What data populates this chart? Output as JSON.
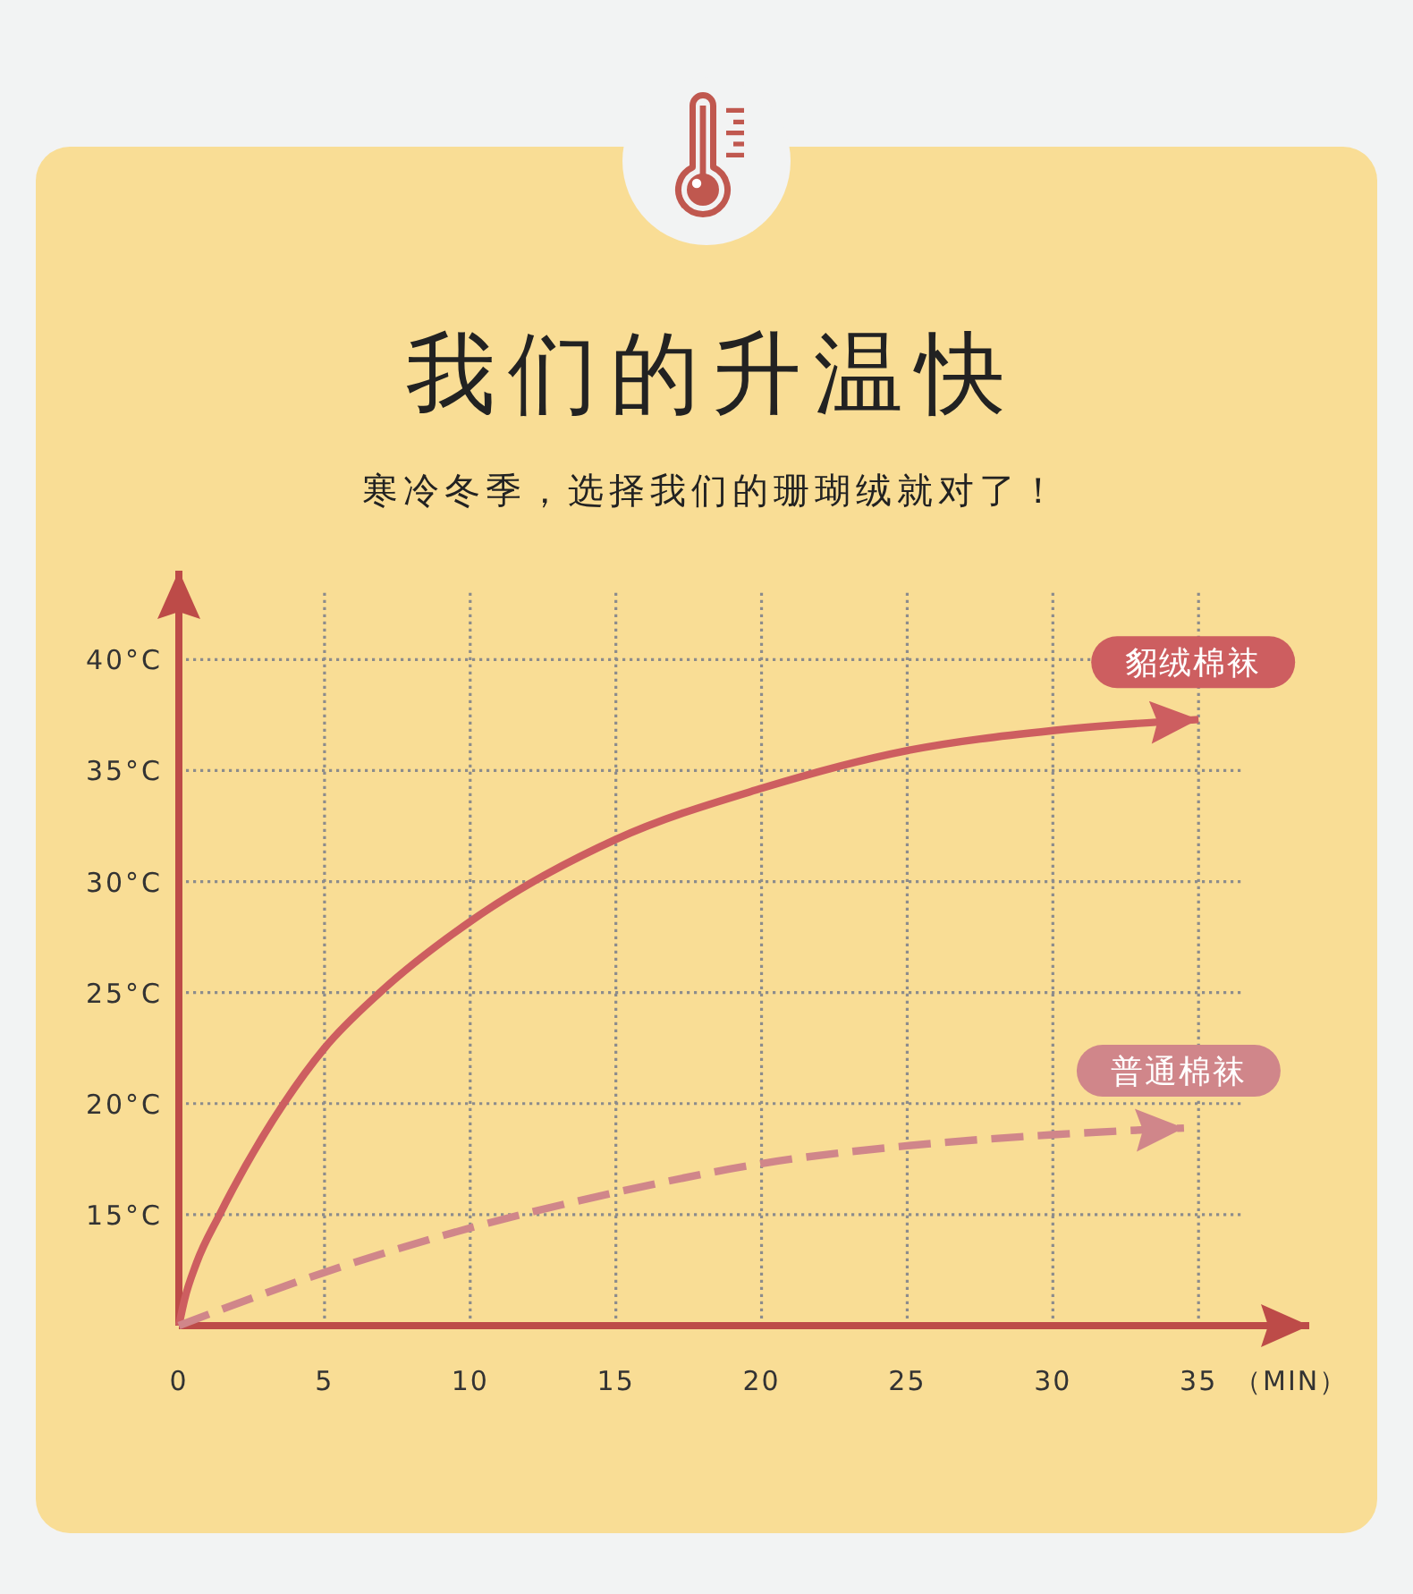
{
  "chart_data": {
    "type": "line",
    "title": "我们的升温快",
    "subtitle": "寒冷冬季，选择我们的珊瑚绒就对了！",
    "xlabel": "（MIN）",
    "series": [
      {
        "name": "貂绒棉袜",
        "color": "#cd5e60",
        "line_style": "solid",
        "x": [
          0,
          0.2,
          0.6,
          1.4,
          3.6,
          5,
          6.9,
          10,
          15,
          20,
          25,
          30,
          35
        ],
        "values": [
          10,
          11.2,
          12.8,
          15,
          20,
          22.5,
          25,
          28.2,
          31.9,
          34.2,
          35.9,
          36.8,
          37.3
        ]
      },
      {
        "name": "普通棉袜",
        "color": "#d0868a",
        "line_style": "dashed",
        "x": [
          0,
          5,
          10,
          15,
          20,
          25,
          30,
          34.5
        ],
        "values": [
          10,
          12.4,
          14.4,
          16,
          17.3,
          18.1,
          18.6,
          18.9
        ]
      }
    ],
    "xlim": [
      0,
      38.8
    ],
    "ylim": [
      10,
      44
    ],
    "xticks": [
      0,
      5,
      10,
      15,
      20,
      25,
      30,
      35
    ],
    "yticks": [
      {
        "value": 15,
        "label": "15°C"
      },
      {
        "value": 20,
        "label": "20°C"
      },
      {
        "value": 25,
        "label": "25°C"
      },
      {
        "value": 30,
        "label": "30°C"
      },
      {
        "value": 35,
        "label": "35°C"
      },
      {
        "value": 40,
        "label": "40°C"
      }
    ],
    "grid": true
  }
}
